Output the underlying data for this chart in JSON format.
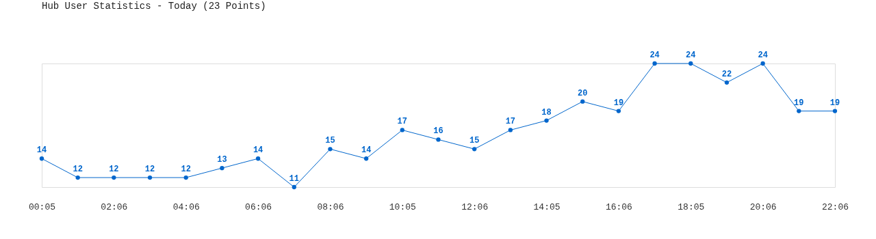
{
  "chart_data": {
    "type": "line",
    "title": "Hub User Statistics - Today (23 Points)",
    "categories": [
      "00:05",
      null,
      "02:06",
      null,
      "04:06",
      null,
      "06:06",
      null,
      "08:06",
      null,
      "10:05",
      null,
      "12:06",
      null,
      "14:05",
      null,
      "16:06",
      null,
      "18:05",
      null,
      "20:06",
      null,
      "22:06"
    ],
    "values": [
      14,
      12,
      12,
      12,
      12,
      13,
      14,
      11,
      15,
      14,
      17,
      16,
      15,
      17,
      18,
      20,
      19,
      24,
      24,
      22,
      24,
      19,
      19
    ],
    "color": "#0066cc",
    "marker": "circle",
    "line_style": "solid",
    "data_labels": true,
    "grid": false
  }
}
